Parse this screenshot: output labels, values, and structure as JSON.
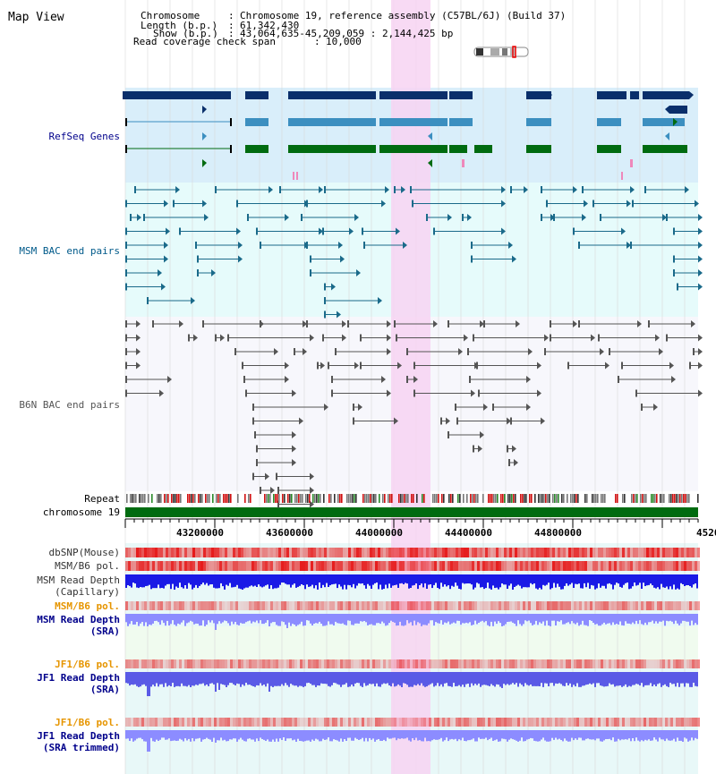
{
  "title": "Map View",
  "header": {
    "chromosome_label": "Chromosome",
    "chromosome_value": "Chromosome 19, reference assembly (C57BL/6J) (Build 37)",
    "length_label": "Length (b.p.)",
    "length_value": "61,342,430",
    "show_label": "Show (b.p.)",
    "show_value": "43,064,635-45,209,059 : 2,144,425 bp",
    "coverage_label": "Read coverage check span",
    "coverage_value": "10,000"
  },
  "tracks": {
    "refseq": "RefSeq Genes",
    "msm_bac": "MSM BAC end pairs",
    "b6n_bac": "B6N BAC end pairs",
    "repeat": "Repeat",
    "chromosome": "chromosome 19",
    "dbsnp": "dbSNP(Mouse)",
    "msm_b6_pol": "MSM/B6 pol.",
    "msm_depth_cap_1": "MSM Read Depth",
    "msm_depth_cap_2": "(Capillary)",
    "msm_b6_pol2": "MSM/B6 pol.",
    "msm_depth_sra_1": "MSM Read Depth",
    "msm_depth_sra_2": "(SRA)",
    "jf1_b6_pol": "JF1/B6 pol.",
    "jf1_depth_sra_1": "JF1 Read Depth",
    "jf1_depth_sra_2": "(SRA)",
    "jf1_b6_pol2": "JF1/B6 pol.",
    "jf1_depth_trim_1": "JF1 Read Depth",
    "jf1_depth_trim_2": "(SRA trimmed)"
  },
  "axis_ticks": [
    "43200000",
    "43600000",
    "44000000",
    "44400000",
    "44800000",
    "4520"
  ],
  "colors": {
    "refseq_dark": "#0a2f6b",
    "refseq_mid": "#3c8fc0",
    "refseq_green": "#006b10",
    "refseq_bg": "#d9eefa",
    "msm_bg": "#e6fbfb",
    "msm_line": "#1a6a8a",
    "b6n_bg": "#f7f7fc",
    "b6n_line": "#555555",
    "highlight": "#f7d4f2",
    "chrom": "#006b10",
    "depth_blue": "#1a1ae6",
    "depth_light": "#8c8cff",
    "pol_red": "#e61a1a",
    "lower_bg": "#e8f8f8"
  }
}
